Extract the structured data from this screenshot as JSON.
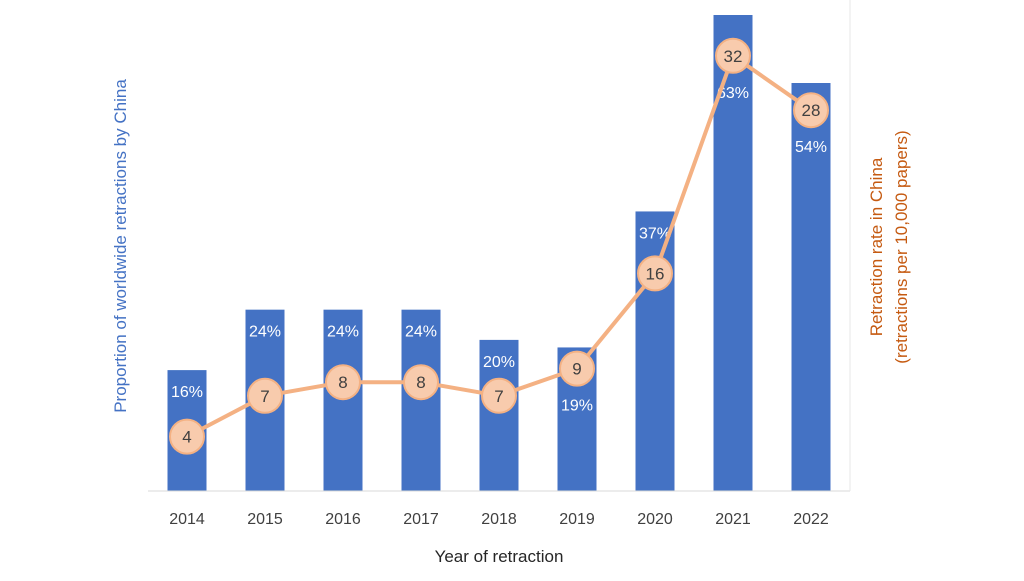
{
  "chart_data": {
    "type": "bar",
    "categories": [
      "2014",
      "2015",
      "2016",
      "2017",
      "2018",
      "2019",
      "2020",
      "2021",
      "2022"
    ],
    "series": [
      {
        "type": "bar",
        "axis": "left",
        "values": [
          16,
          24,
          24,
          24,
          20,
          19,
          37,
          63,
          54
        ],
        "labels": [
          "16%",
          "24%",
          "24%",
          "24%",
          "20%",
          "19%",
          "37%",
          "63%",
          "54%"
        ],
        "color": "#4472C4"
      },
      {
        "type": "line",
        "axis": "right",
        "values": [
          4,
          7,
          8,
          8,
          7,
          9,
          16,
          32,
          28
        ],
        "labels": [
          "4",
          "7",
          "8",
          "8",
          "7",
          "9",
          "16",
          "32",
          "28"
        ],
        "color": "#F4B183"
      }
    ],
    "xlabel": "Year of retraction",
    "ylabel_left": "Proportion of worldwide retractions by China",
    "ylabel_right_line1": "Retraction rate in China",
    "ylabel_right_line2": "(retractions per 10,000 papers)",
    "ylim_left": [
      0,
      0.63
    ],
    "ylim_right": [
      0,
      35
    ],
    "grid": false,
    "legend": "none",
    "colors": {
      "bar": "#4472C4",
      "line": "#F4B183",
      "marker_fill": "#F8CBAD",
      "left_axis_label": "#4472C4",
      "right_axis_label": "#C55A11",
      "axis_line": "#D9D9D9"
    }
  }
}
